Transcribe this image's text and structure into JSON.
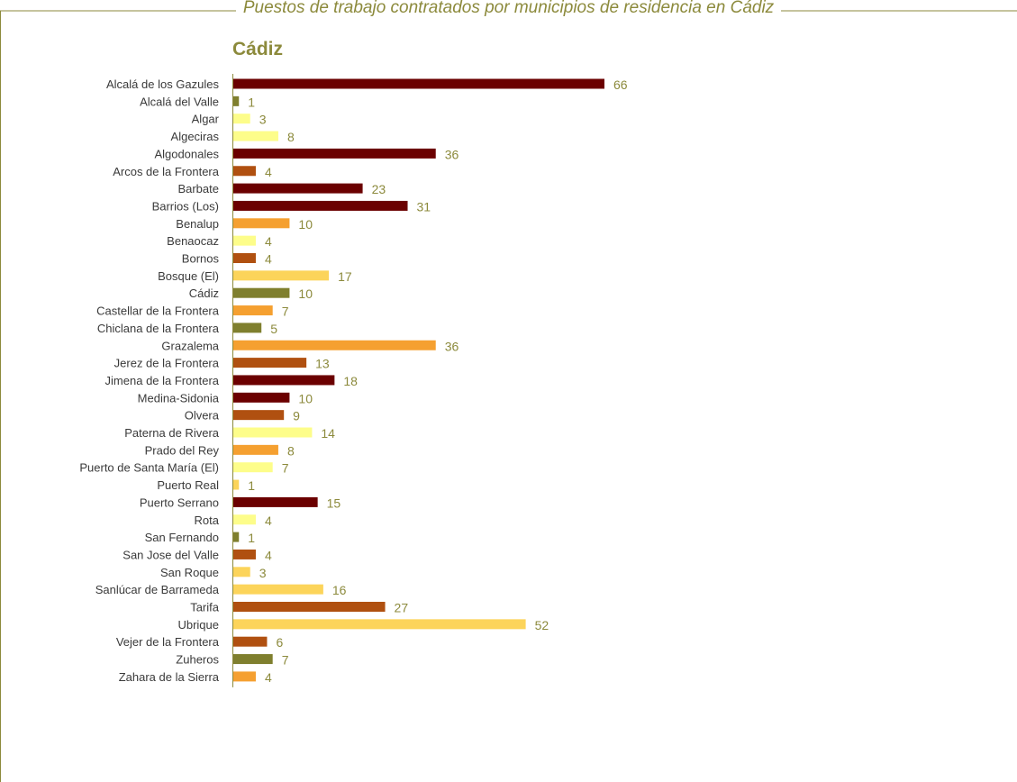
{
  "page": {
    "title": "Puestos de trabajo contratados por municipios de residencia en Cádiz",
    "subtitle": "Cádiz"
  },
  "colors": {
    "text": "#3a3a3a",
    "title": "#8c8a3c",
    "value_label": "#8c8a3c",
    "frame": "#8c8a3c",
    "axis": "#8c8a3c"
  },
  "chart_data": {
    "type": "bar",
    "orientation": "horizontal",
    "title": "Puestos de trabajo contratados por municipios de residencia en Cádiz",
    "subtitle": "Cádiz",
    "xlabel": "",
    "ylabel": "",
    "xlim": [
      0,
      66
    ],
    "grid": false,
    "legend": "none",
    "categories": [
      "Alcalá de los Gazules",
      "Alcalá del Valle",
      "Algar",
      "Algeciras",
      "Algodonales",
      "Arcos de la Frontera",
      "Barbate",
      "Barrios (Los)",
      "Benalup",
      "Benaocaz",
      "Bornos",
      "Bosque (El)",
      "Cádiz",
      "Castellar de la Frontera",
      "Chiclana de la Frontera",
      "Grazalema",
      "Jerez de la Frontera",
      "Jimena de la Frontera",
      "Medina-Sidonia",
      "Olvera",
      "Paterna de Rivera",
      "Prado del Rey",
      "Puerto de Santa María (El)",
      "Puerto Real",
      "Puerto Serrano",
      "Rota",
      "San Fernando",
      "San Jose del Valle",
      "San Roque",
      "Sanlúcar de Barrameda",
      "Tarifa",
      "Ubrique",
      "Vejer de la Frontera",
      "Zuheros",
      "Zahara de la Sierra"
    ],
    "values": [
      66,
      1,
      3,
      8,
      36,
      4,
      23,
      31,
      10,
      4,
      4,
      17,
      10,
      7,
      5,
      36,
      13,
      18,
      10,
      9,
      14,
      8,
      7,
      1,
      15,
      4,
      1,
      4,
      3,
      16,
      27,
      52,
      6,
      7,
      4
    ],
    "bar_colors": [
      "#6b0000",
      "#7f7f2e",
      "#fdfd8a",
      "#fdfd8a",
      "#6b0000",
      "#b05010",
      "#6b0000",
      "#6b0000",
      "#f5a030",
      "#fdfd8a",
      "#b05010",
      "#fcd45a",
      "#7f7f2e",
      "#f5a030",
      "#7f7f2e",
      "#f5a030",
      "#b05010",
      "#6b0000",
      "#6b0000",
      "#b05010",
      "#fdfd8a",
      "#f5a030",
      "#fdfd8a",
      "#fcd45a",
      "#6b0000",
      "#fdfd8a",
      "#7f7f2e",
      "#b05010",
      "#fcd45a",
      "#fcd45a",
      "#b05010",
      "#fcd45a",
      "#b05010",
      "#7f7f2e",
      "#f5a030"
    ]
  }
}
